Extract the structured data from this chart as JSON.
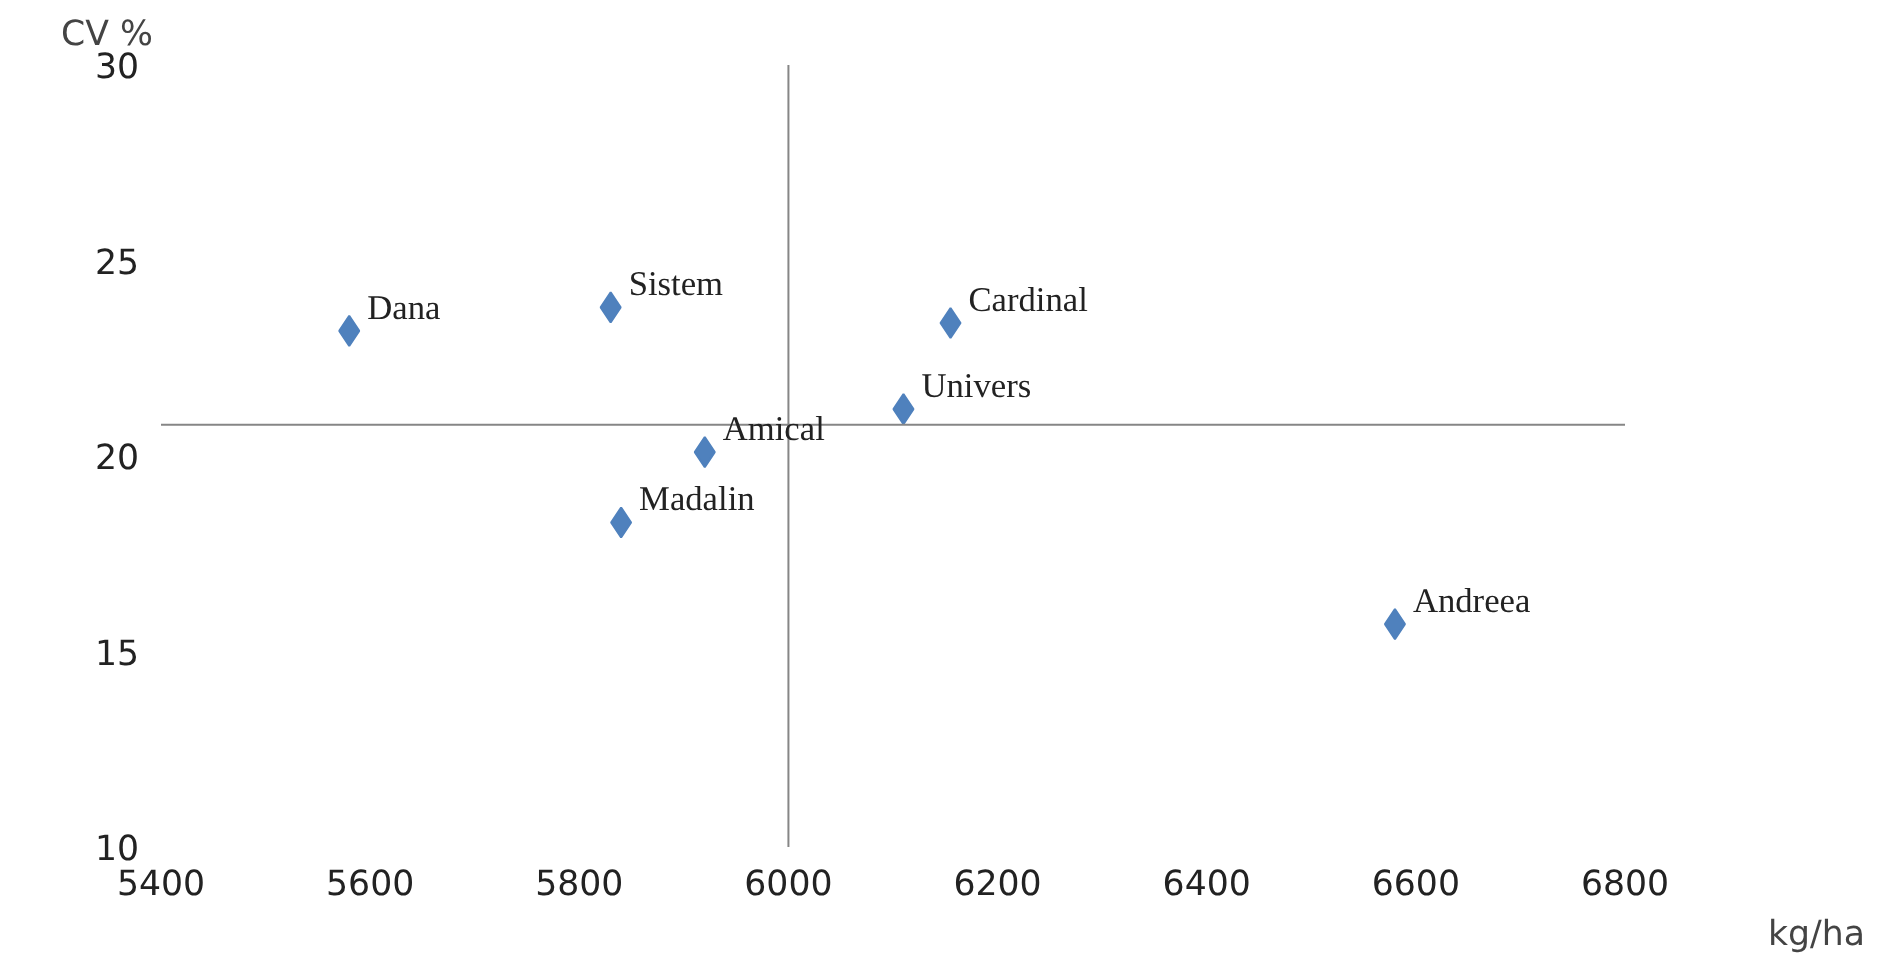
{
  "chart_data": {
    "type": "scatter",
    "xlabel": "kg/ha",
    "ylabel": "CV %",
    "x": [
      5580,
      5830,
      6155,
      6110,
      5920,
      5840,
      6580
    ],
    "values": [
      23.2,
      23.8,
      23.4,
      21.2,
      20.1,
      18.3,
      15.7
    ],
    "color": "#4f81bd",
    "marker": "diamond",
    "grid": false,
    "xlim": [
      5400,
      6800
    ],
    "xticks": [
      5400,
      5600,
      5800,
      6000,
      6200,
      6400,
      6600,
      6800
    ],
    "ylim": [
      10,
      30
    ],
    "yticks": [
      10,
      15,
      20,
      25,
      30
    ],
    "ref_lines": [
      {
        "axis": "x",
        "value": 6000,
        "color": "#868686"
      },
      {
        "axis": "y",
        "value": 20.8,
        "color": "#868686"
      }
    ],
    "annotations": [
      {
        "text": "Dana",
        "x": 5580,
        "y": 23.2
      },
      {
        "text": "Sistem",
        "x": 5830,
        "y": 23.8
      },
      {
        "text": "Cardinal",
        "x": 6155,
        "y": 23.4
      },
      {
        "text": "Univers",
        "x": 6110,
        "y": 21.2
      },
      {
        "text": "Amical",
        "x": 5920,
        "y": 20.1
      },
      {
        "text": "Madalin",
        "x": 5840,
        "y": 18.3
      },
      {
        "text": "Andreea",
        "x": 6580,
        "y": 15.7
      }
    ]
  }
}
